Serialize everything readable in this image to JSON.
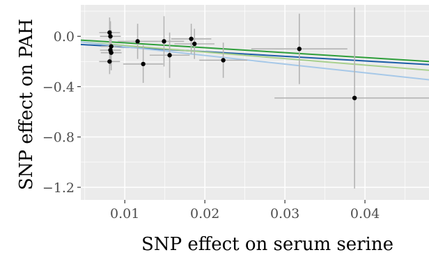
{
  "chart_data": {
    "type": "scatter",
    "title": "",
    "xlabel": "SNP effect on serum serine",
    "ylabel": "SNP effect on PAH",
    "xlim": [
      0.0045,
      0.048
    ],
    "ylim": [
      -1.3,
      0.25
    ],
    "grid": true,
    "x_ticks": [
      0.01,
      0.02,
      0.03,
      0.04
    ],
    "x_tick_labels": [
      "0.01",
      "0.02",
      "0.03",
      "0.04"
    ],
    "y_ticks": [
      0.0,
      -0.4,
      -0.8,
      -1.2
    ],
    "y_tick_labels": [
      "0.0",
      "−0.4",
      "−0.8",
      "−1.2"
    ],
    "points": [
      {
        "x": 0.0081,
        "y": 0.03,
        "x_err": 0.0013,
        "y_err": 0.12
      },
      {
        "x": 0.0082,
        "y": 0.0,
        "x_err": 0.0013,
        "y_err": 0.12
      },
      {
        "x": 0.0083,
        "y": -0.08,
        "x_err": 0.0013,
        "y_err": 0.13
      },
      {
        "x": 0.0082,
        "y": -0.11,
        "x_err": 0.0013,
        "y_err": 0.12
      },
      {
        "x": 0.0083,
        "y": -0.13,
        "x_err": 0.0013,
        "y_err": 0.14
      },
      {
        "x": 0.0081,
        "y": -0.2,
        "x_err": 0.0013,
        "y_err": 0.1
      },
      {
        "x": 0.0116,
        "y": -0.04,
        "x_err": 0.0025,
        "y_err": 0.14
      },
      {
        "x": 0.0123,
        "y": -0.22,
        "x_err": 0.0025,
        "y_err": 0.15
      },
      {
        "x": 0.0149,
        "y": -0.04,
        "x_err": 0.0025,
        "y_err": 0.2
      },
      {
        "x": 0.0156,
        "y": -0.15,
        "x_err": 0.0025,
        "y_err": 0.18
      },
      {
        "x": 0.0183,
        "y": -0.02,
        "x_err": 0.0025,
        "y_err": 0.12
      },
      {
        "x": 0.0187,
        "y": -0.06,
        "x_err": 0.0025,
        "y_err": 0.12
      },
      {
        "x": 0.0223,
        "y": -0.19,
        "x_err": 0.003,
        "y_err": 0.14
      },
      {
        "x": 0.0318,
        "y": -0.1,
        "x_err": 0.006,
        "y_err": 0.28
      },
      {
        "x": 0.0387,
        "y": -0.49,
        "x_err": 0.01,
        "y_err": 0.72
      }
    ],
    "fit_lines": [
      {
        "color": "#1f5fa8",
        "x0": 0.0045,
        "y0": -0.065,
        "x1": 0.048,
        "y1": -0.225
      },
      {
        "color": "#2e9e3a",
        "x0": 0.0045,
        "y0": -0.03,
        "x1": 0.048,
        "y1": -0.2
      },
      {
        "color": "#a8d08d",
        "x0": 0.0045,
        "y0": -0.045,
        "x1": 0.048,
        "y1": -0.27
      },
      {
        "color": "#a6c8e8",
        "x0": 0.0045,
        "y0": -0.045,
        "x1": 0.048,
        "y1": -0.345
      }
    ],
    "colors": {
      "panel_background": "#ebebeb",
      "grid": "#ffffff",
      "points": "#000000",
      "error_bars": "#b3b3b3"
    }
  }
}
